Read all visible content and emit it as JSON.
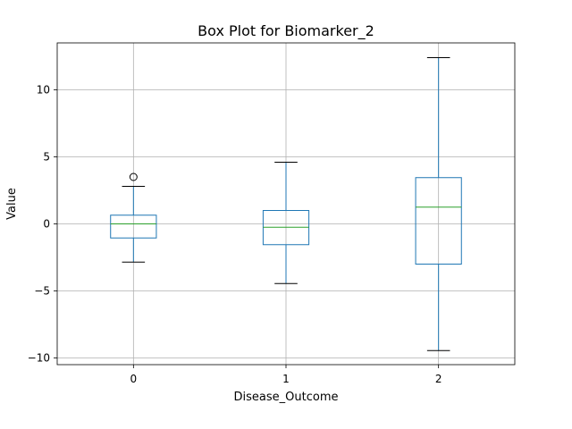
{
  "chart_data": {
    "type": "box",
    "title": "Box Plot for Biomarker_2",
    "xlabel": "Disease_Outcome",
    "ylabel": "Value",
    "categories": [
      "0",
      "1",
      "2"
    ],
    "yticks": [
      -10,
      -5,
      0,
      5,
      10
    ],
    "ytick_labels": [
      "−10",
      "−5",
      "0",
      "5",
      "10"
    ],
    "ylim": [
      -10.5,
      13.5
    ],
    "grid": true,
    "boxes": [
      {
        "category": "0",
        "whisker_low": -2.85,
        "q1": -1.05,
        "median": 0.0,
        "q3": 0.65,
        "whisker_high": 2.8,
        "outliers": [
          3.5
        ]
      },
      {
        "category": "1",
        "whisker_low": -4.45,
        "q1": -1.55,
        "median": -0.25,
        "q3": 1.0,
        "whisker_high": 4.6,
        "outliers": []
      },
      {
        "category": "2",
        "whisker_low": -9.45,
        "q1": -3.0,
        "median": 1.25,
        "q3": 3.45,
        "whisker_high": 12.4,
        "outliers": []
      }
    ],
    "colors": {
      "box": "#1f77b4",
      "median": "#2ca02c",
      "whisker_cap": "#000000",
      "grid": "#b0b0b0",
      "outlier": "#000000"
    }
  }
}
